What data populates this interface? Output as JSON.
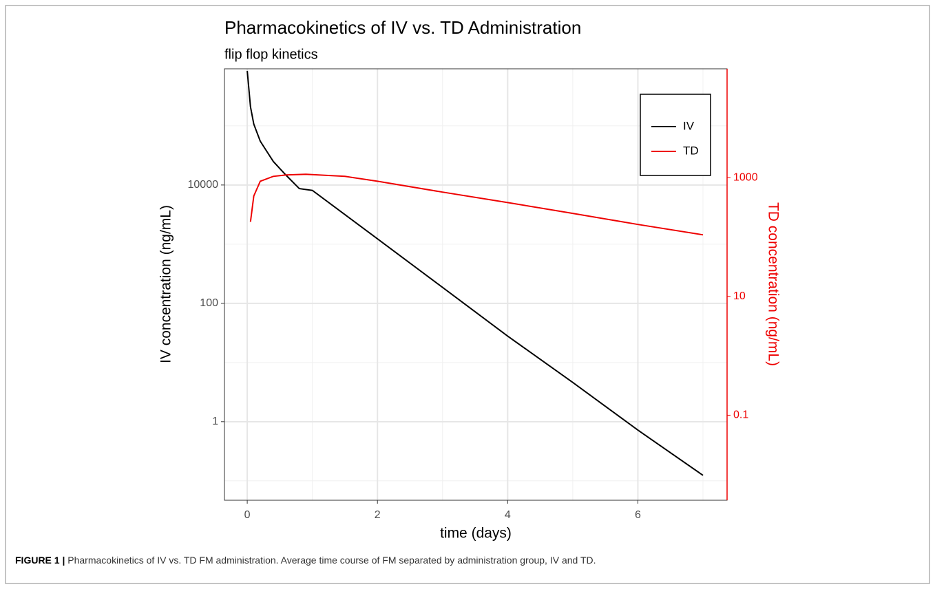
{
  "chart_data": {
    "type": "line",
    "title": "Pharmacokinetics of IV vs. TD Administration",
    "subtitle": "flip flop kinetics",
    "x_label": "time (days)",
    "y_label": "IV concentration (ng/mL)",
    "y2_label": "TD concentration (ng/mL)",
    "log_y": true,
    "log_y2": true,
    "grid": true,
    "legend": "top-right",
    "xlim": [
      -0.35,
      7.37
    ],
    "xticks": [
      0,
      2,
      4,
      6
    ],
    "x_minor_grid": [
      1,
      3,
      5,
      7
    ],
    "ylim": [
      0.047,
      920000
    ],
    "yticks": [
      1,
      100,
      10000
    ],
    "y_minor_grid": [
      0.1,
      10,
      1000,
      100000
    ],
    "y2lim": [
      0.0037,
      68000
    ],
    "y2ticks": [
      0.1,
      10,
      1000
    ],
    "y2_color": "#ee0000",
    "series": [
      {
        "name": "IV",
        "color": "#000000",
        "x": [
          0,
          0.05,
          0.1,
          0.2,
          0.3,
          0.4,
          0.5,
          0.6,
          0.8,
          1,
          2,
          3,
          4,
          5,
          6,
          7
        ],
        "values": [
          850000,
          210000,
          107000,
          55000,
          37000,
          25000,
          19000,
          14500,
          8700,
          8100,
          1230,
          186,
          28,
          4.6,
          0.72,
          0.124
        ]
      },
      {
        "name": "TD",
        "color": "#ee0000",
        "axis": "y2",
        "x": [
          0.05,
          0.1,
          0.2,
          0.4,
          0.6,
          0.9,
          1.5,
          2,
          3,
          4,
          5,
          6,
          7
        ],
        "values": [
          180,
          490,
          870,
          1050,
          1110,
          1140,
          1050,
          870,
          570,
          380,
          250,
          163,
          109
        ]
      }
    ]
  },
  "caption": {
    "label": "FIGURE 1 |",
    "text": "Pharmacokinetics of IV vs. TD FM administration. Average time course of FM separated by administration group, IV and TD."
  }
}
